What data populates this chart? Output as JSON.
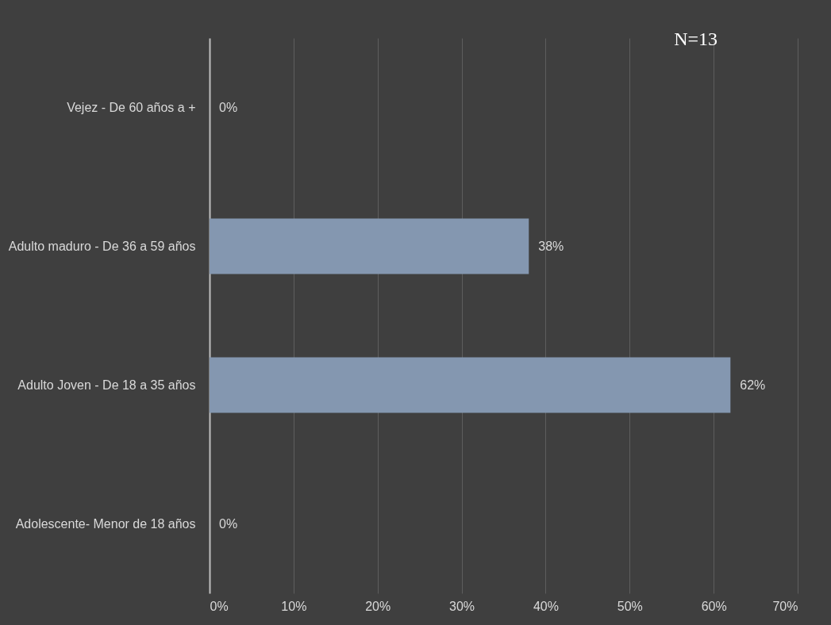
{
  "chart_data": {
    "type": "bar",
    "orientation": "horizontal",
    "categories": [
      "Vejez - De 60 años a +",
      "Adulto maduro - De 36 a 59 años",
      "Adulto Joven - De 18 a 35 años",
      "Adolescente- Menor de 18 años"
    ],
    "values": [
      0,
      38,
      62,
      0
    ],
    "value_labels": [
      "0%",
      "38%",
      "62%",
      "0%"
    ],
    "color": "#8497b0",
    "xlim": [
      0,
      70
    ],
    "xticks": [
      {
        "value": 0,
        "label": "0%"
      },
      {
        "value": 10,
        "label": "10%"
      },
      {
        "value": 20,
        "label": "20%"
      },
      {
        "value": 30,
        "label": "30%"
      },
      {
        "value": 40,
        "label": "40%"
      },
      {
        "value": 50,
        "label": "50%"
      },
      {
        "value": 60,
        "label": "60%"
      },
      {
        "value": 70,
        "label": "70%"
      }
    ],
    "grid": "x",
    "annotations": [
      "N=13"
    ]
  }
}
